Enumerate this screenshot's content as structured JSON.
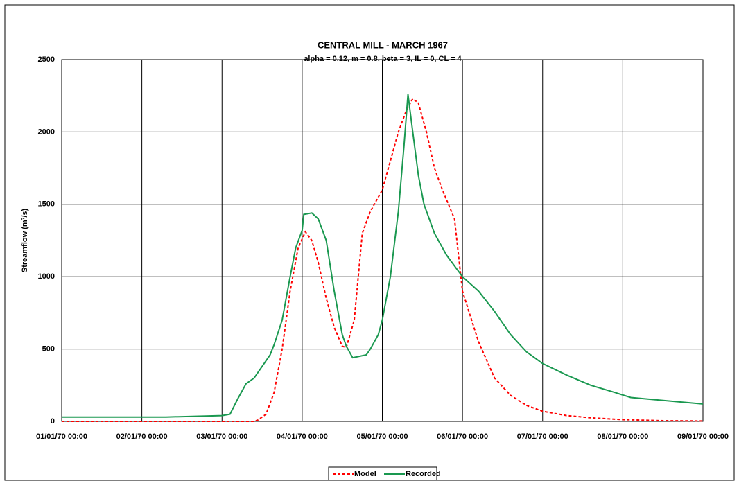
{
  "chart_data": {
    "type": "line",
    "title": "CENTRAL MILL - MARCH 1967",
    "subtitle": "alpha = 0.12, m = 0.8, beta = 3, IL = 0, CL = 4",
    "y_label": "Streamflow (m³/s)",
    "grid": true,
    "legend": "bottom",
    "xlim": [
      0,
      8
    ],
    "xticks": [
      {
        "value": 0,
        "label": "01/01/70 00:00"
      },
      {
        "value": 1,
        "label": "02/01/70 00:00"
      },
      {
        "value": 2,
        "label": "03/01/70 00:00"
      },
      {
        "value": 3,
        "label": "04/01/70 00:00"
      },
      {
        "value": 4,
        "label": "05/01/70 00:00"
      },
      {
        "value": 5,
        "label": "06/01/70 00:00"
      },
      {
        "value": 6,
        "label": "07/01/70 00:00"
      },
      {
        "value": 7,
        "label": "08/01/70 00:00"
      },
      {
        "value": 8,
        "label": "09/01/70 00:00"
      }
    ],
    "ylim": [
      0,
      2500
    ],
    "yticks": [
      0,
      500,
      1000,
      1500,
      2000,
      2500
    ],
    "series": [
      {
        "name": "Model",
        "color": "#ff0000",
        "dash": true,
        "x": [
          0,
          1,
          2,
          2.4,
          2.45,
          2.55,
          2.65,
          2.75,
          2.85,
          2.95,
          3.04,
          3.12,
          3.2,
          3.3,
          3.4,
          3.5,
          3.55,
          3.65,
          3.7,
          3.75,
          3.85,
          4.0,
          4.1,
          4.2,
          4.3,
          4.38,
          4.45,
          4.55,
          4.65,
          4.75,
          4.9,
          5.0,
          5.2,
          5.4,
          5.6,
          5.8,
          6.0,
          6.3,
          6.6,
          7.0,
          7.5,
          8.0
        ],
        "values": [
          0,
          0,
          0,
          0,
          10,
          50,
          200,
          500,
          900,
          1200,
          1310,
          1250,
          1100,
          850,
          650,
          520,
          510,
          700,
          1000,
          1300,
          1450,
          1600,
          1800,
          2000,
          2150,
          2230,
          2200,
          2000,
          1750,
          1600,
          1400,
          900,
          550,
          300,
          180,
          110,
          70,
          40,
          25,
          12,
          5,
          3
        ]
      },
      {
        "name": "Recorded",
        "color": "#1a9850",
        "dash": false,
        "x": [
          0,
          1,
          1.3,
          2.0,
          2.1,
          2.2,
          2.3,
          2.4,
          2.5,
          2.6,
          2.65,
          2.75,
          2.85,
          2.92,
          3.0,
          3.02,
          3.12,
          3.2,
          3.3,
          3.4,
          3.5,
          3.55,
          3.63,
          3.8,
          3.85,
          3.95,
          4.0,
          4.1,
          4.2,
          4.27,
          4.32,
          4.38,
          4.45,
          4.52,
          4.65,
          4.8,
          5.0,
          5.2,
          5.4,
          5.6,
          5.8,
          6.0,
          6.3,
          6.6,
          6.9,
          7.1,
          7.3,
          7.6,
          8.0
        ],
        "values": [
          30,
          30,
          30,
          40,
          50,
          160,
          260,
          300,
          380,
          460,
          530,
          700,
          1000,
          1200,
          1320,
          1430,
          1440,
          1400,
          1250,
          900,
          600,
          520,
          440,
          460,
          500,
          600,
          700,
          1000,
          1450,
          1900,
          2260,
          2000,
          1700,
          1500,
          1300,
          1150,
          1000,
          900,
          760,
          600,
          480,
          400,
          320,
          250,
          200,
          165,
          155,
          140,
          120
        ]
      }
    ]
  }
}
